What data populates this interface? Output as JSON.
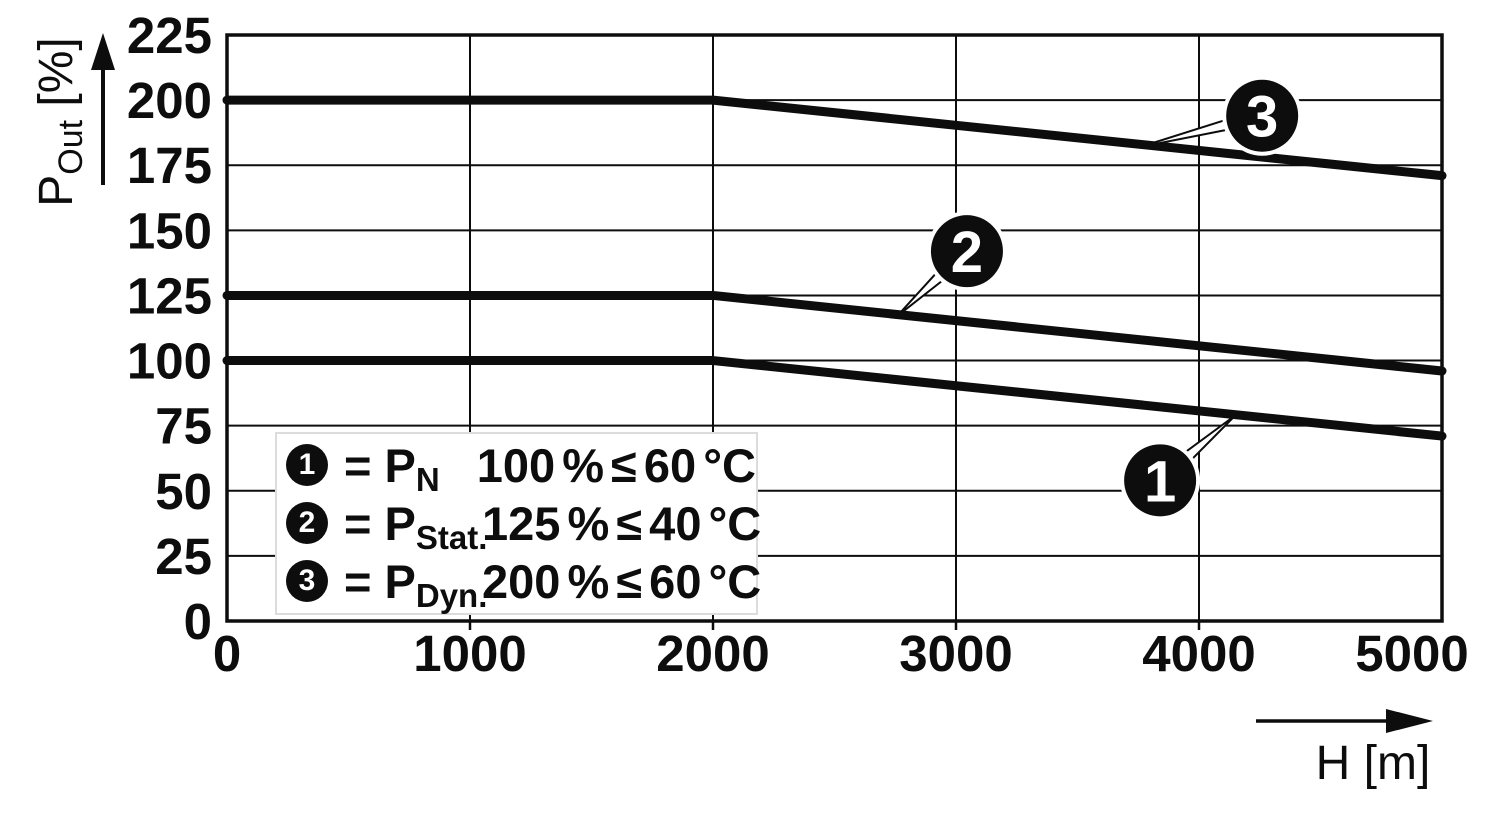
{
  "figure": {
    "background": "#ffffff",
    "ink_color": "#0d0d0d"
  },
  "chart_data": {
    "type": "line",
    "title": "",
    "xlabel": "H [m]",
    "ylabel": "P_Out [%]",
    "ylabel_parts": {
      "main": "P",
      "sub": "Out",
      "unit": " [%]"
    },
    "xlim": [
      0,
      5000
    ],
    "ylim": [
      0,
      225
    ],
    "x_ticks": [
      0,
      1000,
      2000,
      3000,
      4000,
      5000
    ],
    "y_ticks": [
      0,
      25,
      50,
      75,
      100,
      125,
      150,
      175,
      200,
      225
    ],
    "grid": true,
    "legend_position": "inside lower-left",
    "series": [
      {
        "name": "P_N",
        "callout": "1",
        "points": [
          [
            0,
            100
          ],
          [
            2000,
            100
          ],
          [
            5000,
            71
          ]
        ]
      },
      {
        "name": "P_Stat.",
        "callout": "2",
        "points": [
          [
            0,
            125
          ],
          [
            2000,
            125
          ],
          [
            5000,
            96
          ]
        ]
      },
      {
        "name": "P_Dyn.",
        "callout": "3",
        "points": [
          [
            0,
            200
          ],
          [
            2000,
            200
          ],
          [
            5000,
            171
          ]
        ]
      }
    ],
    "annotations": [
      {
        "label": "1",
        "center": [
          3840,
          54
        ],
        "tip": [
          4150,
          79
        ]
      },
      {
        "label": "2",
        "center": [
          3045,
          142
        ],
        "tip": [
          2757,
          117
        ]
      },
      {
        "label": "3",
        "center": [
          4260,
          194
        ],
        "tip": [
          3757,
          182
        ]
      }
    ]
  },
  "legend": {
    "rows": [
      {
        "marker": "1",
        "eq": "=",
        "symbol_main": "P",
        "symbol_sub": "N",
        "condition": "100 % ≤ 60 °C"
      },
      {
        "marker": "2",
        "eq": "=",
        "symbol_main": "P",
        "symbol_sub": "Stat.",
        "condition": "125 % ≤ 40 °C"
      },
      {
        "marker": "3",
        "eq": "=",
        "symbol_main": "P",
        "symbol_sub": "Dyn.",
        "condition": "200 % ≤ 60 °C"
      }
    ]
  }
}
